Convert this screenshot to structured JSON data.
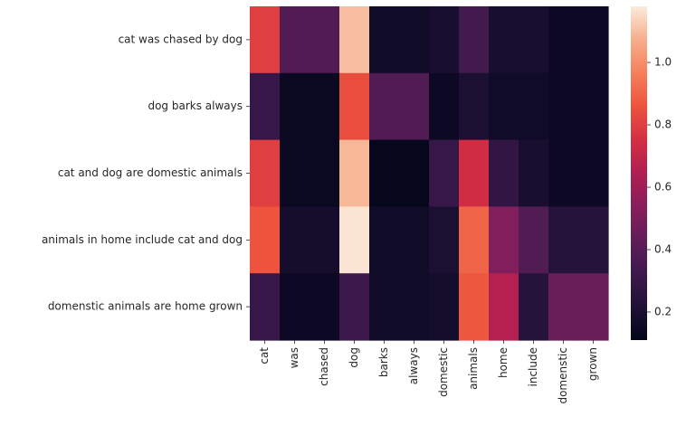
{
  "chart_data": {
    "type": "heatmap",
    "title": "",
    "xlabel": "",
    "ylabel": "",
    "x_categories": [
      "cat",
      "was",
      "chased",
      "dog",
      "barks",
      "always",
      "domestic",
      "animals",
      "home",
      "include",
      "domenstic",
      "grown"
    ],
    "y_categories": [
      "cat was chased by dog",
      "dog barks always",
      "cat and dog are domestic animals",
      "animals in home include cat and dog",
      "domenstic animals are home grown"
    ],
    "values": [
      [
        0.8,
        0.38,
        0.38,
        1.1,
        0.16,
        0.16,
        0.19,
        0.34,
        0.19,
        0.19,
        0.15,
        0.15
      ],
      [
        0.3,
        0.14,
        0.14,
        0.84,
        0.38,
        0.38,
        0.15,
        0.2,
        0.16,
        0.16,
        0.15,
        0.15
      ],
      [
        0.8,
        0.14,
        0.14,
        1.09,
        0.12,
        0.12,
        0.3,
        0.74,
        0.28,
        0.19,
        0.15,
        0.15
      ],
      [
        0.86,
        0.18,
        0.18,
        1.17,
        0.16,
        0.16,
        0.2,
        0.9,
        0.52,
        0.38,
        0.24,
        0.24
      ],
      [
        0.3,
        0.15,
        0.15,
        0.32,
        0.16,
        0.16,
        0.18,
        0.87,
        0.66,
        0.24,
        0.45,
        0.45
      ]
    ],
    "colorbar": {
      "min": 0.11,
      "max": 1.18,
      "ticks": [
        "0.2",
        "0.4",
        "0.6",
        "0.8",
        "1.0"
      ],
      "colormap": "rocket"
    },
    "grid": false,
    "legend": "colorbar-right"
  }
}
